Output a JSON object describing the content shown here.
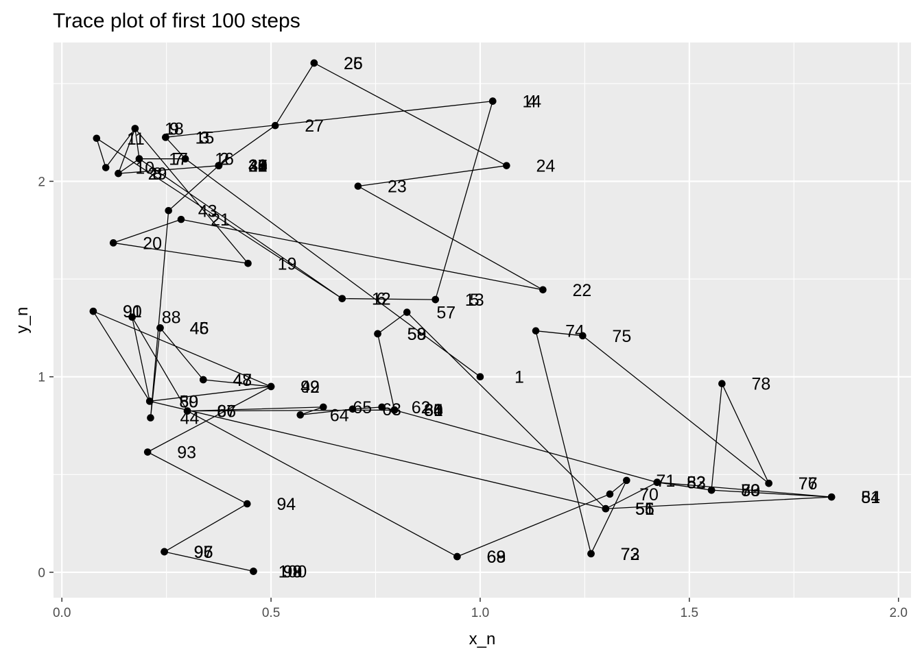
{
  "chart_data": {
    "type": "line",
    "title": "Trace plot of first 100 steps",
    "xlabel": "x_n",
    "ylabel": "y_n",
    "xlim": [
      -0.02,
      2.03
    ],
    "ylim": [
      -0.13,
      2.71
    ],
    "xticks": [
      0.0,
      0.5,
      1.0,
      1.5,
      2.0
    ],
    "xtick_labels": [
      "0.0",
      "0.5",
      "1.0",
      "1.5",
      "2.0"
    ],
    "yticks": [
      0,
      1,
      2
    ],
    "ytick_labels": [
      "0",
      "1",
      "2"
    ],
    "grid": true,
    "legend": "none",
    "colors": {
      "panel": "#ebebeb",
      "grid": "#ffffff",
      "line": "#000000",
      "point": "#000000"
    },
    "series": [
      {
        "points": [
          {
            "x": 1.0,
            "y": 1.0,
            "label": "1"
          },
          {
            "x": 0.295,
            "y": 2.115,
            "label": "2"
          },
          {
            "x": 0.248,
            "y": 2.225,
            "label": "3"
          },
          {
            "x": 1.03,
            "y": 2.41,
            "label": "4"
          },
          {
            "x": 0.893,
            "y": 1.395,
            "label": "5"
          },
          {
            "x": 0.67,
            "y": 1.4,
            "label": "6"
          },
          {
            "x": 0.185,
            "y": 2.115,
            "label": "7"
          },
          {
            "x": 0.135,
            "y": 2.04,
            "label": "8"
          },
          {
            "x": 0.175,
            "y": 2.27,
            "label": "9"
          },
          {
            "x": 0.105,
            "y": 2.07,
            "label": "10"
          },
          {
            "x": 0.083,
            "y": 2.22,
            "label": "11"
          },
          {
            "x": 0.67,
            "y": 1.4,
            "label": "12"
          },
          {
            "x": 0.893,
            "y": 1.395,
            "label": "13"
          },
          {
            "x": 1.03,
            "y": 2.41,
            "label": "14"
          },
          {
            "x": 0.248,
            "y": 2.225,
            "label": "15"
          },
          {
            "x": 0.295,
            "y": 2.115,
            "label": "16"
          },
          {
            "x": 0.185,
            "y": 2.115,
            "label": "17"
          },
          {
            "x": 0.175,
            "y": 2.27,
            "label": "18"
          },
          {
            "x": 0.445,
            "y": 1.58,
            "label": "19"
          },
          {
            "x": 0.123,
            "y": 1.685,
            "label": "20"
          },
          {
            "x": 0.285,
            "y": 1.805,
            "label": "21"
          },
          {
            "x": 1.15,
            "y": 1.445,
            "label": "22"
          },
          {
            "x": 0.708,
            "y": 1.975,
            "label": "23"
          },
          {
            "x": 1.063,
            "y": 2.08,
            "label": "24"
          },
          {
            "x": 0.603,
            "y": 2.605,
            "label": "25"
          },
          {
            "x": 0.603,
            "y": 2.605,
            "label": "26"
          },
          {
            "x": 0.51,
            "y": 2.285,
            "label": "27"
          },
          {
            "x": 0.375,
            "y": 2.08,
            "label": "28"
          },
          {
            "x": 0.135,
            "y": 2.04,
            "label": "29"
          },
          {
            "x": 0.375,
            "y": 2.08,
            "label": "30"
          },
          {
            "x": 0.375,
            "y": 2.08,
            "label": "31"
          },
          {
            "x": 0.375,
            "y": 2.08,
            "label": "32"
          },
          {
            "x": 0.375,
            "y": 2.08,
            "label": "33"
          },
          {
            "x": 0.375,
            "y": 2.08,
            "label": "34"
          },
          {
            "x": 0.375,
            "y": 2.08,
            "label": "35"
          },
          {
            "x": 0.375,
            "y": 2.08,
            "label": "36"
          },
          {
            "x": 0.375,
            "y": 2.08,
            "label": "37"
          },
          {
            "x": 0.375,
            "y": 2.08,
            "label": "38"
          },
          {
            "x": 0.375,
            "y": 2.08,
            "label": "39"
          },
          {
            "x": 0.375,
            "y": 2.08,
            "label": "40"
          },
          {
            "x": 0.375,
            "y": 2.08,
            "label": "41"
          },
          {
            "x": 0.375,
            "y": 2.08,
            "label": "42"
          },
          {
            "x": 0.255,
            "y": 1.85,
            "label": "43"
          },
          {
            "x": 0.212,
            "y": 0.79,
            "label": "44"
          },
          {
            "x": 0.235,
            "y": 1.25,
            "label": "45"
          },
          {
            "x": 0.235,
            "y": 1.25,
            "label": "46"
          },
          {
            "x": 0.338,
            "y": 0.985,
            "label": "47"
          },
          {
            "x": 0.338,
            "y": 0.985,
            "label": "48"
          },
          {
            "x": 0.5,
            "y": 0.95,
            "label": "49"
          },
          {
            "x": 0.21,
            "y": 0.875,
            "label": "50"
          },
          {
            "x": 1.3,
            "y": 0.325,
            "label": "51"
          },
          {
            "x": 1.423,
            "y": 0.46,
            "label": "52"
          },
          {
            "x": 1.553,
            "y": 0.42,
            "label": "53"
          },
          {
            "x": 1.84,
            "y": 0.385,
            "label": "54"
          },
          {
            "x": 1.3,
            "y": 0.325,
            "label": "55"
          },
          {
            "x": 1.3,
            "y": 0.325,
            "label": "56"
          },
          {
            "x": 0.825,
            "y": 1.33,
            "label": "57"
          },
          {
            "x": 0.755,
            "y": 1.22,
            "label": "58"
          },
          {
            "x": 0.755,
            "y": 1.22,
            "label": "59"
          },
          {
            "x": 0.795,
            "y": 0.83,
            "label": "60"
          },
          {
            "x": 0.795,
            "y": 0.83,
            "label": "61"
          },
          {
            "x": 0.765,
            "y": 0.845,
            "label": "62"
          },
          {
            "x": 0.695,
            "y": 0.835,
            "label": "63"
          },
          {
            "x": 0.57,
            "y": 0.805,
            "label": "64"
          },
          {
            "x": 0.625,
            "y": 0.845,
            "label": "65"
          },
          {
            "x": 0.3,
            "y": 0.825,
            "label": "66"
          },
          {
            "x": 0.3,
            "y": 0.825,
            "label": "67"
          },
          {
            "x": 0.945,
            "y": 0.08,
            "label": "68"
          },
          {
            "x": 0.945,
            "y": 0.08,
            "label": "69"
          },
          {
            "x": 1.31,
            "y": 0.4,
            "label": "70"
          },
          {
            "x": 1.35,
            "y": 0.47,
            "label": "71"
          },
          {
            "x": 1.265,
            "y": 0.095,
            "label": "72"
          },
          {
            "x": 1.265,
            "y": 0.095,
            "label": "73"
          },
          {
            "x": 1.133,
            "y": 1.235,
            "label": "74"
          },
          {
            "x": 1.245,
            "y": 1.21,
            "label": "75"
          },
          {
            "x": 1.69,
            "y": 0.455,
            "label": "76"
          },
          {
            "x": 1.69,
            "y": 0.455,
            "label": "77"
          },
          {
            "x": 1.578,
            "y": 0.965,
            "label": "78"
          },
          {
            "x": 1.553,
            "y": 0.42,
            "label": "79"
          },
          {
            "x": 1.553,
            "y": 0.42,
            "label": "80"
          },
          {
            "x": 1.84,
            "y": 0.385,
            "label": "81"
          },
          {
            "x": 1.423,
            "y": 0.46,
            "label": "82"
          },
          {
            "x": 1.423,
            "y": 0.46,
            "label": "83"
          },
          {
            "x": 0.795,
            "y": 0.83,
            "label": "84"
          },
          {
            "x": 0.795,
            "y": 0.83,
            "label": "85"
          },
          {
            "x": 0.795,
            "y": 0.83,
            "label": "86"
          },
          {
            "x": 0.3,
            "y": 0.825,
            "label": "87"
          },
          {
            "x": 0.168,
            "y": 1.305,
            "label": "88"
          },
          {
            "x": 0.21,
            "y": 0.875,
            "label": "89"
          },
          {
            "x": 0.075,
            "y": 1.335,
            "label": "90"
          },
          {
            "x": 0.075,
            "y": 1.335,
            "label": "91"
          },
          {
            "x": 0.5,
            "y": 0.95,
            "label": "92"
          },
          {
            "x": 0.205,
            "y": 0.615,
            "label": "93"
          },
          {
            "x": 0.443,
            "y": 0.35,
            "label": "94"
          },
          {
            "x": 0.245,
            "y": 0.105,
            "label": "95"
          },
          {
            "x": 0.245,
            "y": 0.105,
            "label": "96"
          },
          {
            "x": 0.245,
            "y": 0.105,
            "label": "97"
          },
          {
            "x": 0.458,
            "y": 0.005,
            "label": "98"
          },
          {
            "x": 0.458,
            "y": 0.005,
            "label": "99"
          },
          {
            "x": 0.458,
            "y": 0.005,
            "label": "100"
          }
        ]
      }
    ]
  }
}
